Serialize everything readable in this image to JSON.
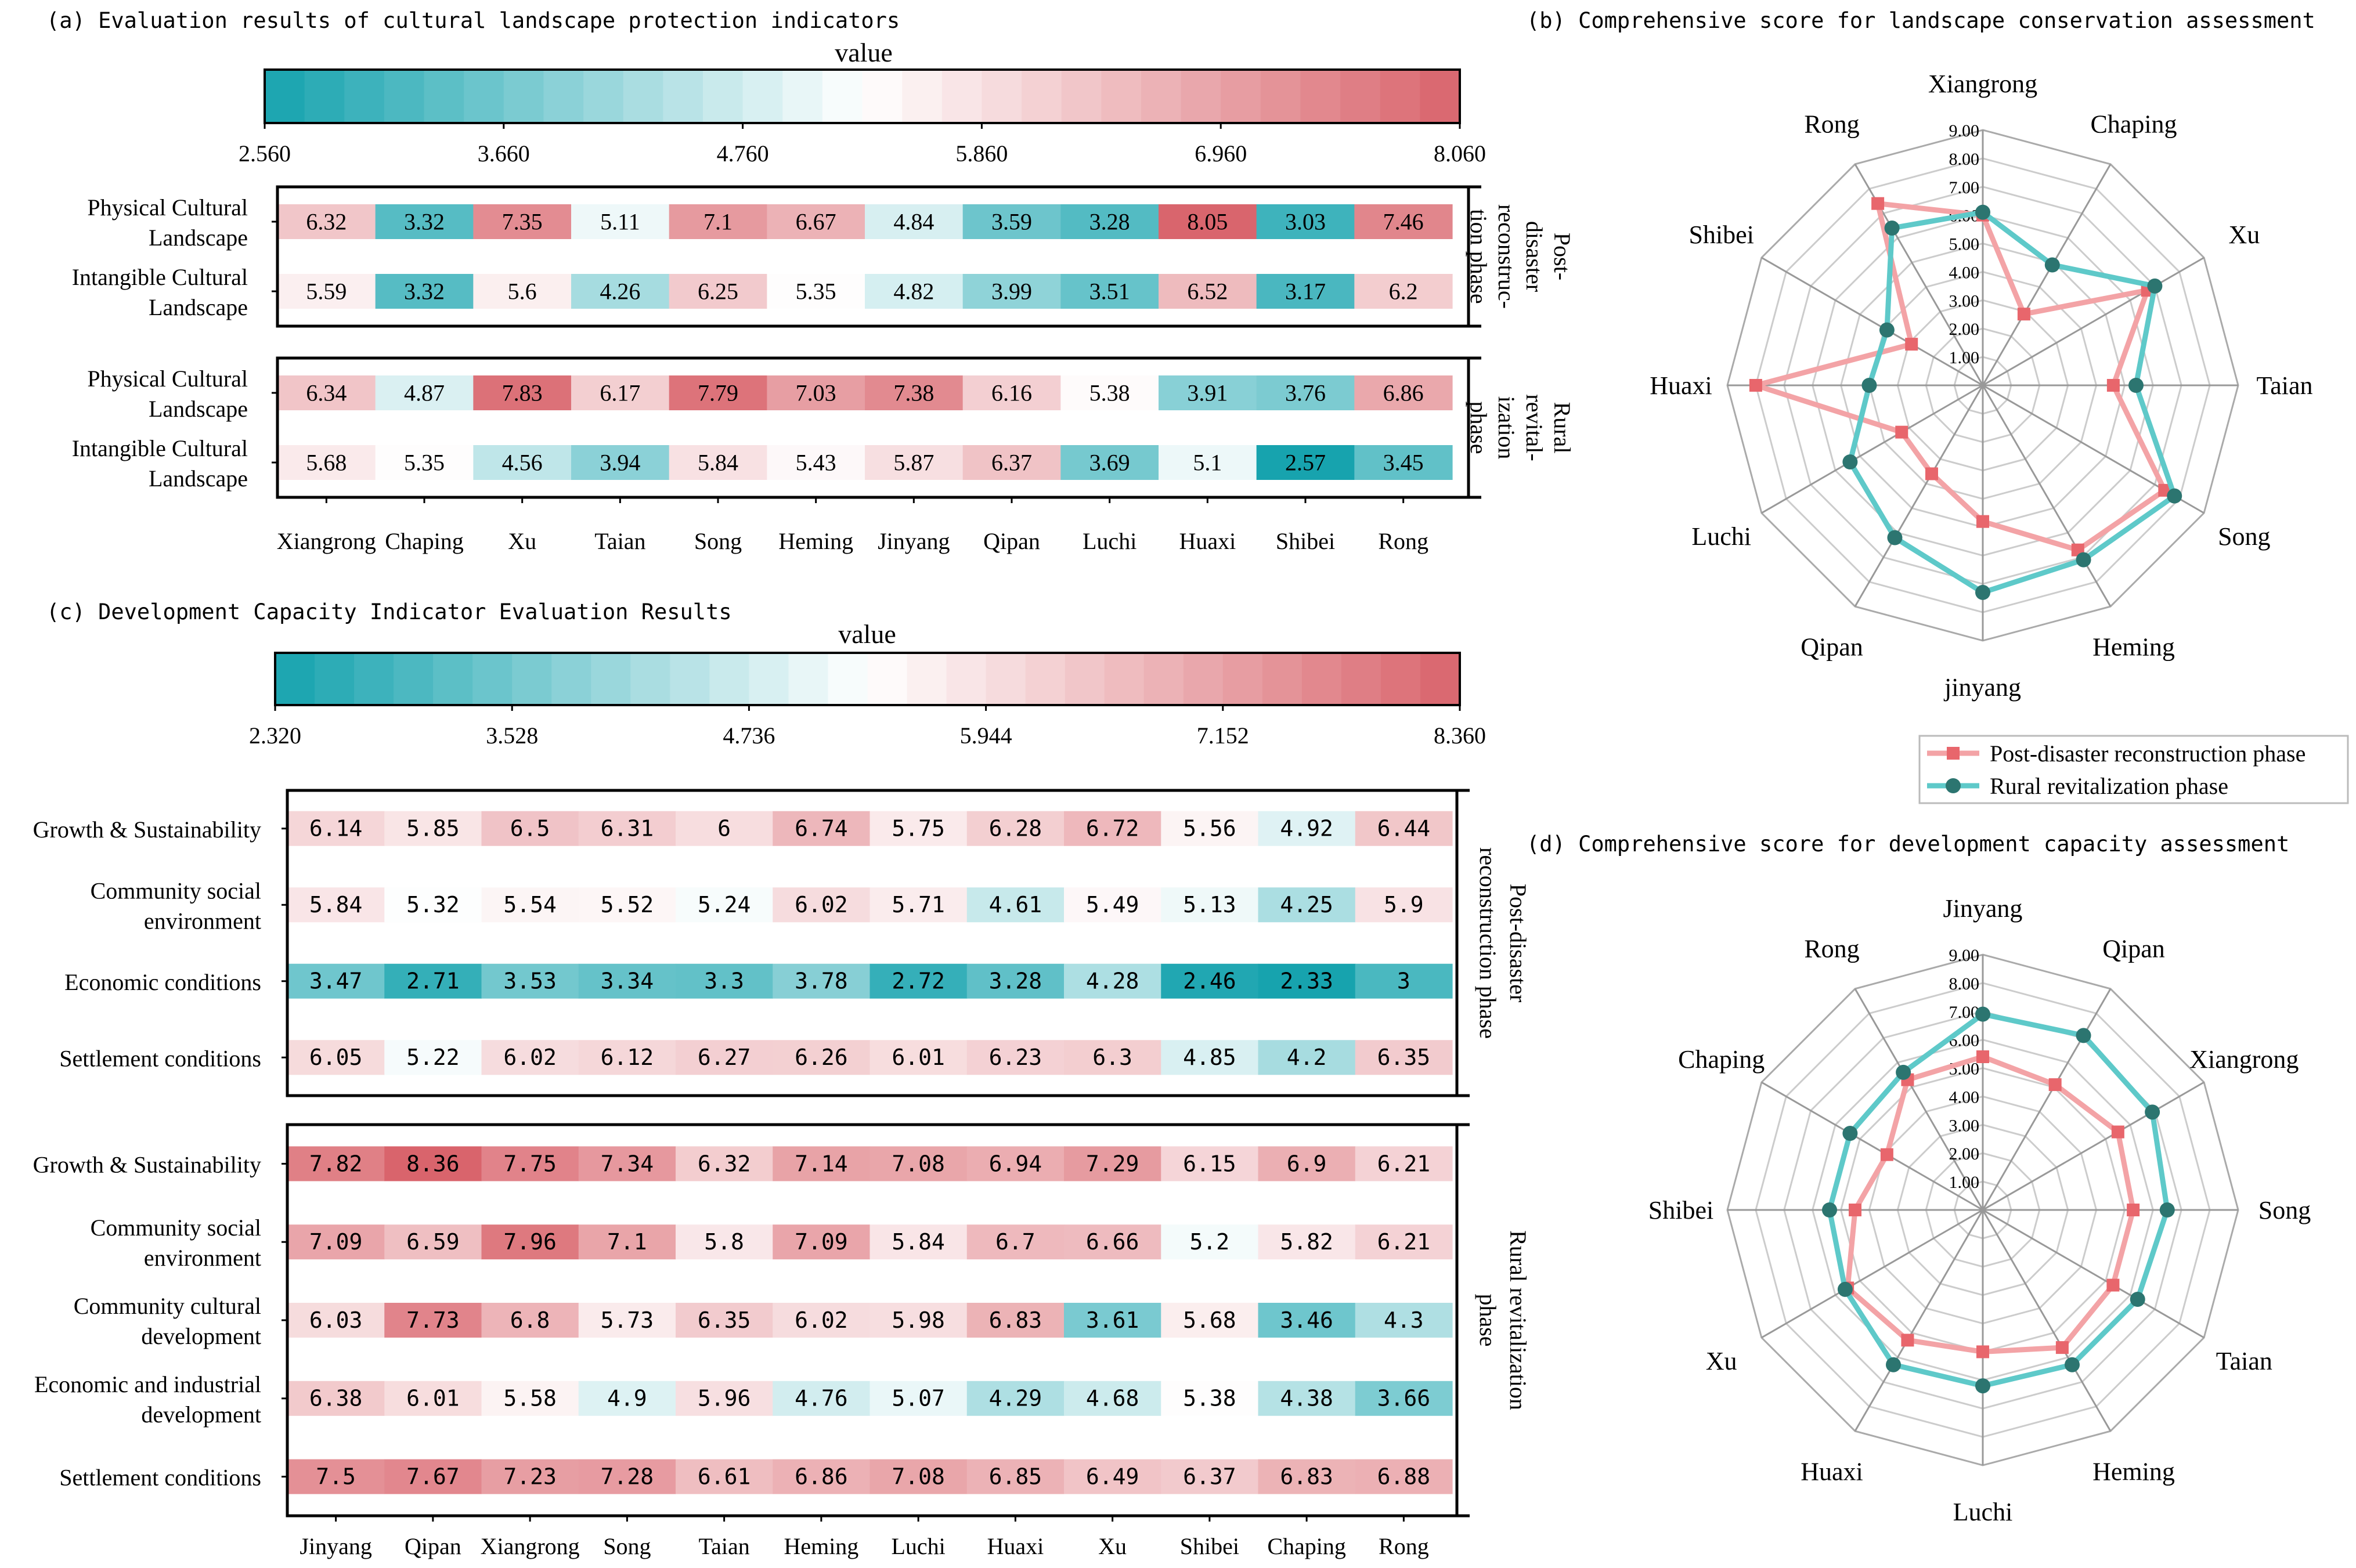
{
  "colors": {
    "low": "#16a3ae",
    "mid": "#ffffff",
    "high": "#d9646c",
    "post_line": "#f3a3a6",
    "post_marker": "#e8666c",
    "rural_line": "#5ec9c9",
    "rural_marker": "#2c7570",
    "grid": "#cccccc",
    "axis": "#999999",
    "frame": "#000000"
  },
  "legend": {
    "post": "Post-disaster reconstruction phase",
    "rural": "Rural revitalization phase"
  },
  "chart_data": [
    {
      "id": "a",
      "type": "heatmap",
      "title": "(a)  Evaluation results of cultural landscape protection indicators",
      "colorbar_label": "value",
      "colorbar_ticks": [
        "2.560",
        "3.660",
        "4.760",
        "5.860",
        "6.960",
        "8.060"
      ],
      "vmin": 2.56,
      "vmax": 8.06,
      "columns": [
        "Xiangrong",
        "Chaping",
        "Xu",
        "Taian",
        "Song",
        "Heming",
        "Jinyang",
        "Qipan",
        "Luchi",
        "Huaxi",
        "Shibei",
        "Rong"
      ],
      "blocks": [
        {
          "phase_lines": [
            "Post-",
            "disaster",
            "reconstruc-",
            "tion phase"
          ],
          "rows": [
            {
              "label": [
                "Physical Cultural",
                "Landscape"
              ],
              "values": [
                6.32,
                3.32,
                7.35,
                5.11,
                7.1,
                6.67,
                4.84,
                3.59,
                3.28,
                8.05,
                3.03,
                7.46
              ]
            },
            {
              "label": [
                "Intangible Cultural",
                "Landscape"
              ],
              "values": [
                5.59,
                3.32,
                5.6,
                4.26,
                6.25,
                5.35,
                4.82,
                3.99,
                3.51,
                6.52,
                3.17,
                6.2
              ]
            }
          ]
        },
        {
          "phase_lines": [
            "Rural",
            "revital-",
            "ization",
            "phase"
          ],
          "rows": [
            {
              "label": [
                "Physical Cultural",
                "Landscape"
              ],
              "values": [
                6.34,
                4.87,
                7.83,
                6.17,
                7.79,
                7.03,
                7.38,
                6.16,
                5.38,
                3.91,
                3.76,
                6.86
              ]
            },
            {
              "label": [
                "Intangible Cultural",
                "Landscape"
              ],
              "values": [
                5.68,
                5.35,
                4.56,
                3.94,
                5.84,
                5.43,
                5.87,
                6.37,
                3.69,
                5.1,
                2.57,
                3.45
              ]
            }
          ]
        }
      ]
    },
    {
      "id": "b",
      "type": "radar",
      "title": "(b) Comprehensive score for landscape conservation assessment",
      "axes": [
        "Xiangrong",
        "Chaping",
        "Xu",
        "Taian",
        "Song",
        "Heming",
        "jinyang",
        "Qipan",
        "Luchi",
        "Huaxi",
        "Shibei",
        "Rong"
      ],
      "rings": [
        "1.00",
        "2.00",
        "3.00",
        "4.00",
        "5.00",
        "6.00",
        "7.00",
        "8.00",
        "9.00"
      ],
      "rmin": 0,
      "rmax": 9,
      "series": [
        {
          "name": "Post-disaster reconstruction phase",
          "values": [
            6.0,
            2.9,
            6.7,
            4.6,
            7.4,
            6.7,
            4.8,
            3.6,
            3.3,
            8.0,
            2.9,
            7.4
          ]
        },
        {
          "name": "Rural revitalization phase",
          "values": [
            6.1,
            4.9,
            7.0,
            5.4,
            7.8,
            7.1,
            7.3,
            6.2,
            5.4,
            4.0,
            3.9,
            6.4
          ]
        }
      ]
    },
    {
      "id": "c",
      "type": "heatmap",
      "title": "(c) Development Capacity Indicator Evaluation Results",
      "colorbar_label": "value",
      "colorbar_ticks": [
        "2.320",
        "3.528",
        "4.736",
        "5.944",
        "7.152",
        "8.360"
      ],
      "vmin": 2.32,
      "vmax": 8.36,
      "columns": [
        "Jinyang",
        "Qipan",
        "Xiangrong",
        "Song",
        "Taian",
        "Heming",
        "Luchi",
        "Huaxi",
        "Xu",
        "Shibei",
        "Chaping",
        "Rong"
      ],
      "blocks": [
        {
          "phase_lines": [
            "Post-disaster",
            "reconstruction phase"
          ],
          "rows": [
            {
              "label": [
                "Growth & Sustainability"
              ],
              "values": [
                6.14,
                5.85,
                6.5,
                6.31,
                6,
                6.74,
                5.75,
                6.28,
                6.72,
                5.56,
                4.92,
                6.44
              ]
            },
            {
              "label": [
                "Community social",
                "environment"
              ],
              "values": [
                5.84,
                5.32,
                5.54,
                5.52,
                5.24,
                6.02,
                5.71,
                4.61,
                5.49,
                5.13,
                4.25,
                5.9
              ]
            },
            {
              "label": [
                "Economic conditions"
              ],
              "values": [
                3.47,
                2.71,
                3.53,
                3.34,
                3.3,
                3.78,
                2.72,
                3.28,
                4.28,
                2.46,
                2.33,
                3
              ]
            },
            {
              "label": [
                "Settlement conditions"
              ],
              "values": [
                6.05,
                5.22,
                6.02,
                6.12,
                6.27,
                6.26,
                6.01,
                6.23,
                6.3,
                4.85,
                4.2,
                6.35
              ]
            }
          ]
        },
        {
          "phase_lines": [
            "Rural revitalization",
            "phase"
          ],
          "rows": [
            {
              "label": [
                "Growth & Sustainability"
              ],
              "values": [
                7.82,
                8.36,
                7.75,
                7.34,
                6.32,
                7.14,
                7.08,
                6.94,
                7.29,
                6.15,
                6.9,
                6.21
              ]
            },
            {
              "label": [
                "Community social",
                "environment"
              ],
              "values": [
                7.09,
                6.59,
                7.96,
                7.1,
                5.8,
                7.09,
                5.84,
                6.7,
                6.66,
                5.2,
                5.82,
                6.21
              ]
            },
            {
              "label": [
                "Community cultural",
                "development"
              ],
              "values": [
                6.03,
                7.73,
                6.8,
                5.73,
                6.35,
                6.02,
                5.98,
                6.83,
                3.61,
                5.68,
                3.46,
                4.3
              ]
            },
            {
              "label": [
                "Economic and industrial",
                "development"
              ],
              "values": [
                6.38,
                6.01,
                5.58,
                4.9,
                5.96,
                4.76,
                5.07,
                4.29,
                4.68,
                5.38,
                4.38,
                3.66
              ]
            },
            {
              "label": [
                "Settlement conditions"
              ],
              "values": [
                7.5,
                7.67,
                7.23,
                7.28,
                6.61,
                6.86,
                7.08,
                6.85,
                6.49,
                6.37,
                6.83,
                6.88
              ]
            }
          ]
        }
      ]
    },
    {
      "id": "d",
      "type": "radar",
      "title": "(d) Comprehensive score for development capacity assessment",
      "axes": [
        "Jinyang",
        "Qipan",
        "Xiangrong",
        "Song",
        "Taian",
        "Heming",
        "Luchi",
        "Huaxi",
        "Xu",
        "Shibei",
        "Chaping",
        "Rong"
      ],
      "rings": [
        "1.00",
        "2.00",
        "3.00",
        "4.00",
        "5.00",
        "6.00",
        "7.00",
        "8.00",
        "9.00"
      ],
      "rmin": 0,
      "rmax": 9,
      "series": [
        {
          "name": "Post-disaster reconstruction phase",
          "values": [
            5.4,
            5.1,
            5.5,
            5.3,
            5.3,
            5.6,
            5.0,
            5.3,
            5.5,
            4.5,
            3.9,
            5.3
          ]
        },
        {
          "name": "Rural revitalization phase",
          "values": [
            6.9,
            7.1,
            6.9,
            6.5,
            6.3,
            6.3,
            6.2,
            6.3,
            5.6,
            5.4,
            5.4,
            5.6
          ]
        }
      ]
    }
  ]
}
